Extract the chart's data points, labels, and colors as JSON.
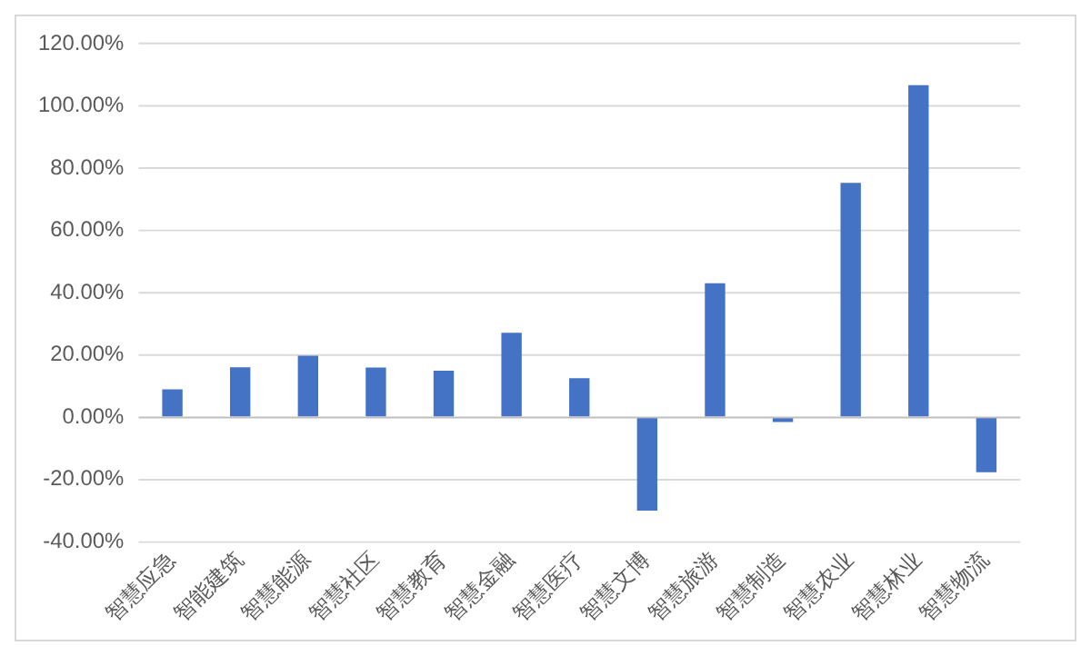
{
  "chart_data": {
    "type": "bar",
    "categories": [
      "智慧应急",
      "智能建筑",
      "智慧能源",
      "智慧社区",
      "智慧教育",
      "智慧金融",
      "智慧医疗",
      "智慧文博",
      "智慧旅游",
      "智慧制造",
      "智慧农业",
      "智慧林业",
      "智慧物流"
    ],
    "values": [
      9,
      16.1,
      19.8,
      16,
      15,
      27.2,
      12.6,
      -30,
      43.1,
      -1.5,
      75.3,
      106.7,
      -17.6
    ],
    "color": "#4472c4",
    "ylim": [
      -40,
      120
    ],
    "yticks": [
      {
        "value": -40,
        "label": "-40.00%"
      },
      {
        "value": -20,
        "label": "-20.00%"
      },
      {
        "value": 0,
        "label": "0.00%"
      },
      {
        "value": 20,
        "label": "20.00%"
      },
      {
        "value": 40,
        "label": "40.00%"
      },
      {
        "value": 60,
        "label": "60.00%"
      },
      {
        "value": 80,
        "label": "80.00%"
      },
      {
        "value": 100,
        "label": "100.00%"
      },
      {
        "value": 120,
        "label": "120.00%"
      }
    ],
    "grid": "y"
  }
}
